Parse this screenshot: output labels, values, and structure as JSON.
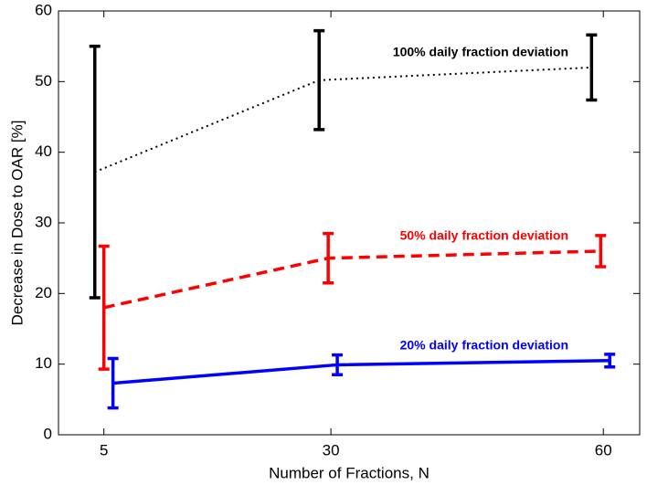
{
  "chart_data": {
    "type": "line",
    "xlabel": "Number of Fractions, N",
    "ylabel": "Decrease in Dose to OAR [%]",
    "xlim": [
      0,
      64
    ],
    "xticks": [
      5,
      30,
      60
    ],
    "ylim": [
      0,
      60
    ],
    "yticks": [
      0,
      10,
      20,
      30,
      40,
      50,
      60
    ],
    "series": [
      {
        "name": "100% daily fraction deviation",
        "color": "#000000",
        "style": "dotted",
        "x": [
          4,
          28.7,
          58.7
        ],
        "values": [
          37.2,
          50.2,
          52
        ],
        "errors": [
          17.8,
          7,
          4.6
        ]
      },
      {
        "name": "50% daily fraction deviation",
        "color": "#ff0000",
        "style": "dashed",
        "x": [
          5,
          29.7,
          59.7
        ],
        "values": [
          18,
          25,
          26
        ],
        "errors": [
          8.7,
          3.5,
          2.2
        ]
      },
      {
        "name": "20% daily fraction deviation",
        "color": "#0000ff",
        "style": "solid",
        "x": [
          6,
          30.7,
          60.7
        ],
        "values": [
          7.3,
          9.9,
          10.5
        ],
        "errors": [
          3.5,
          1.4,
          0.9
        ]
      }
    ]
  }
}
